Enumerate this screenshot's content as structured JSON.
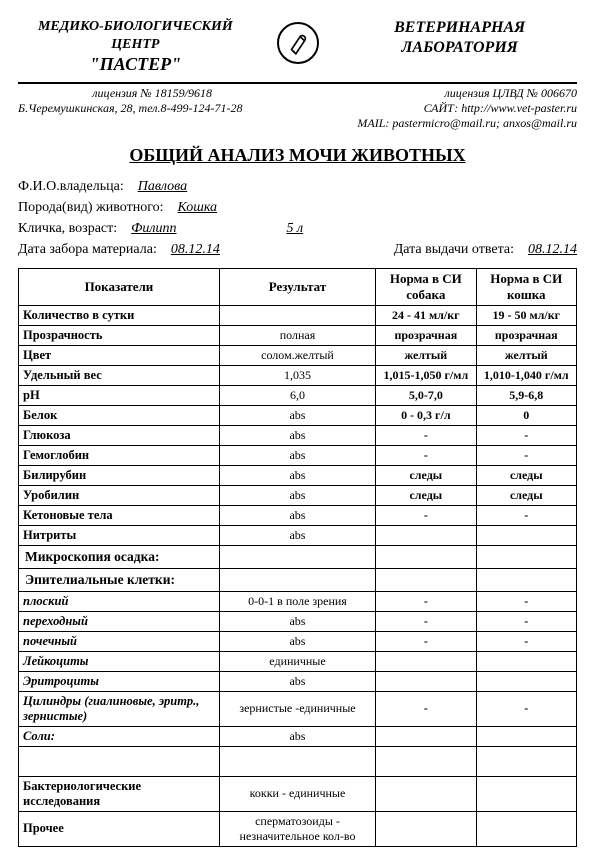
{
  "header": {
    "left_line1": "МЕДИКО-БИОЛОГИЧЕСКИЙ",
    "left_line2": "ЦЕНТР",
    "left_line3": "\"ПАСТЕР\"",
    "right_line1": "ВЕТЕРИНАРНАЯ",
    "right_line2": "ЛАБОРАТОРИЯ"
  },
  "subheader": {
    "license_left": "лицензия № 18159/9618",
    "address": "Б.Черемушкинская, 28, тел.8-499-124-71-28",
    "license_right": "лицензия ЦЛВД № 006670",
    "site": "САЙТ: http://www.vet-paster.ru",
    "mail": "MAIL: pastermicro@mail.ru; anxos@mail.ru"
  },
  "title": "ОБЩИЙ АНАЛИЗ МОЧИ ЖИВОТНЫХ",
  "info": {
    "owner_label": "Ф.И.О.владельца:",
    "owner": "Павлова",
    "species_label": "Порода(вид) животного:",
    "species": "Кошка",
    "name_age_label": "Кличка, возраст:",
    "name": "Филипп",
    "age": "5 л",
    "sample_date_label": "Дата забора материала:",
    "sample_date": "08.12.14",
    "result_date_label": "Дата выдачи ответа:",
    "result_date": "08.12.14"
  },
  "table": {
    "head": {
      "param": "Показатели",
      "result": "Результат",
      "norm_dog": "Норма в СИ собака",
      "norm_cat": "Норма в СИ кошка"
    },
    "rows": [
      {
        "p": "Количество в сутки",
        "r": "",
        "d": "24 - 41 мл/кг",
        "c": "19 - 50 мл/кг"
      },
      {
        "p": "Прозрачность",
        "r": "полная",
        "d": "прозрачная",
        "c": "прозрачная"
      },
      {
        "p": "Цвет",
        "r": "солом.желтый",
        "d": "желтый",
        "c": "желтый"
      },
      {
        "p": "Удельный вес",
        "r": "1,035",
        "d": "1,015-1,050 г/мл",
        "c": "1,010-1,040 г/мл"
      },
      {
        "p": "рН",
        "r": "6,0",
        "d": "5,0-7,0",
        "c": "5,9-6,8"
      },
      {
        "p": "Белок",
        "r": "abs",
        "d": "0 - 0,3 г/л",
        "c": "0"
      },
      {
        "p": "Глюкоза",
        "r": "abs",
        "d": "-",
        "c": "-"
      },
      {
        "p": "Гемоглобин",
        "r": "abs",
        "d": "-",
        "c": "-"
      },
      {
        "p": "Билирубин",
        "r": "abs",
        "d": "следы",
        "c": "следы"
      },
      {
        "p": "Уробилин",
        "r": "abs",
        "d": "следы",
        "c": "следы"
      },
      {
        "p": "Кетоновые тела",
        "r": "abs",
        "d": "-",
        "c": "-"
      },
      {
        "p": "Нитриты",
        "r": "abs",
        "d": "",
        "c": ""
      }
    ],
    "section_microscopy": "Микроскопия осадка:",
    "section_epith": "Эпителиальные клетки:",
    "rows2": [
      {
        "p": "плоский",
        "it": true,
        "r": "0-0-1 в поле зрения",
        "d": "-",
        "c": "-"
      },
      {
        "p": "переходный",
        "it": true,
        "r": "abs",
        "d": "-",
        "c": "-"
      },
      {
        "p": "почечный",
        "it": true,
        "r": "abs",
        "d": "-",
        "c": "-"
      },
      {
        "p": "Лейкоциты",
        "it": true,
        "r": "единичные",
        "d": "",
        "c": ""
      },
      {
        "p": "Эритроциты",
        "it": true,
        "r": "abs",
        "d": "",
        "c": ""
      },
      {
        "p": "Цилиндры (гиалиновые, эритр., зернистые)",
        "it": true,
        "r": "зернистые -единичные",
        "d": "-",
        "c": "-"
      },
      {
        "p": "Соли:",
        "it": true,
        "r": "abs",
        "d": "",
        "c": ""
      }
    ],
    "rows3": [
      {
        "p": "Бактериологические исследования",
        "r": "кокки - единичные",
        "d": "",
        "c": ""
      },
      {
        "p": "Прочее",
        "r": "сперматозоиды - незначительное кол-во",
        "d": "",
        "c": ""
      }
    ]
  }
}
